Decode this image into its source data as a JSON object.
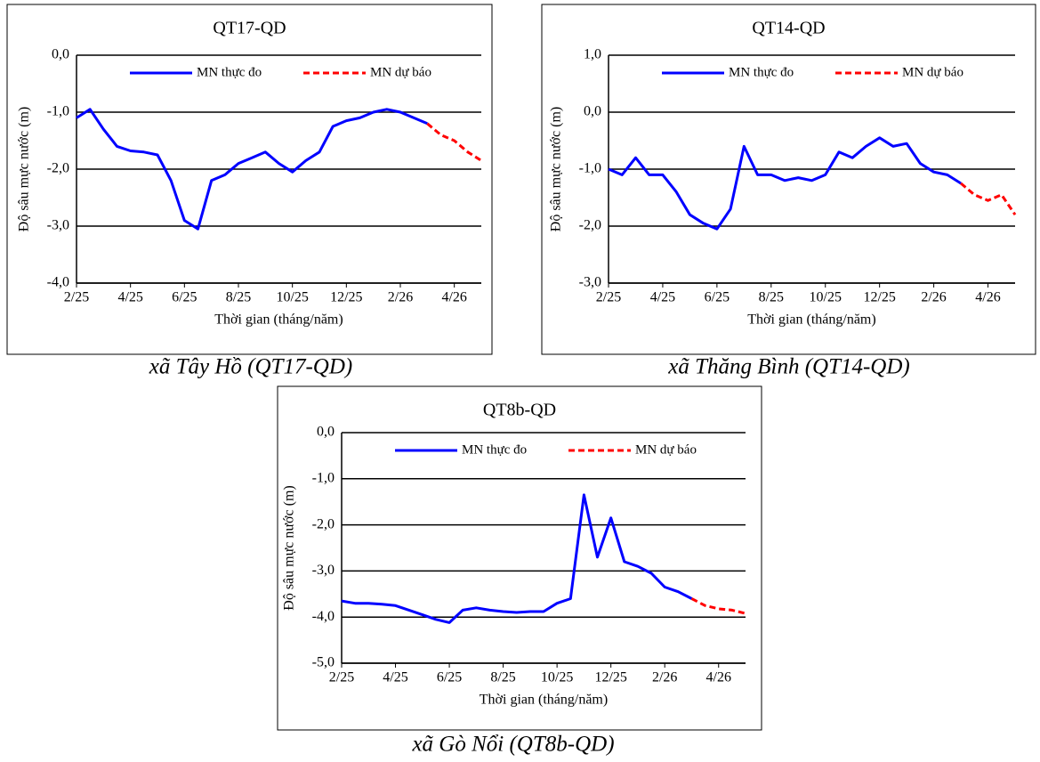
{
  "chart_data": [
    {
      "type": "line",
      "title": "QT17-QD",
      "caption": "xã Tây Hồ (QT17-QD)",
      "y_label": "Độ sâu mực nước (m)",
      "x_label": "Thời gian (tháng/năm)",
      "categories": [
        "2/25",
        null,
        null,
        null,
        "4/25",
        null,
        null,
        null,
        "6/25",
        null,
        null,
        null,
        "8/25",
        null,
        null,
        null,
        "10/25",
        null,
        null,
        null,
        "12/25",
        null,
        null,
        null,
        "2/26",
        null,
        null,
        null,
        "4/26",
        null,
        null
      ],
      "series": [
        {
          "name": "MN thực đo",
          "color": "#0000ff",
          "dash": false,
          "values": [
            -1.1,
            -0.95,
            -1.3,
            -1.6,
            -1.68,
            -1.7,
            -1.75,
            -2.2,
            -2.9,
            -3.05,
            -2.2,
            -2.1,
            -1.9,
            -1.8,
            -1.7,
            -1.9,
            -2.05,
            -1.85,
            -1.7,
            -1.25,
            -1.15,
            -1.1,
            -1.0,
            -0.95,
            -1.0,
            -1.1,
            -1.2,
            null,
            null,
            null,
            null
          ]
        },
        {
          "name": "MN dự báo",
          "color": "#ff0000",
          "dash": true,
          "values": [
            null,
            null,
            null,
            null,
            null,
            null,
            null,
            null,
            null,
            null,
            null,
            null,
            null,
            null,
            null,
            null,
            null,
            null,
            null,
            null,
            null,
            null,
            null,
            null,
            null,
            null,
            -1.2,
            -1.4,
            -1.5,
            -1.7,
            -1.85
          ]
        }
      ],
      "ylim": [
        -4,
        0
      ],
      "yticks": [
        {
          "value": -4,
          "label": "-4,0"
        },
        {
          "value": -3,
          "label": "-3,0"
        },
        {
          "value": -2,
          "label": "-2,0"
        },
        {
          "value": -1,
          "label": "-1,0"
        },
        {
          "value": 0,
          "label": "0,0"
        }
      ],
      "grid": true
    },
    {
      "type": "line",
      "title": "QT14-QD",
      "caption": "xã Thăng Bình (QT14-QD)",
      "y_label": "Độ sâu mực nước (m)",
      "x_label": "Thời gian (tháng/năm)",
      "categories": [
        "2/25",
        null,
        null,
        null,
        "4/25",
        null,
        null,
        null,
        "6/25",
        null,
        null,
        null,
        "8/25",
        null,
        null,
        null,
        "10/25",
        null,
        null,
        null,
        "12/25",
        null,
        null,
        null,
        "2/26",
        null,
        null,
        null,
        "4/26",
        null,
        null
      ],
      "series": [
        {
          "name": "MN thực đo",
          "color": "#0000ff",
          "dash": false,
          "values": [
            -1.0,
            -1.1,
            -0.8,
            -1.1,
            -1.1,
            -1.4,
            -1.8,
            -1.95,
            -2.05,
            -1.7,
            -0.6,
            -1.1,
            -1.1,
            -1.2,
            -1.15,
            -1.2,
            -1.1,
            -0.7,
            -0.8,
            -0.6,
            -0.45,
            -0.6,
            -0.55,
            -0.9,
            -1.05,
            -1.1,
            -1.25,
            null,
            null,
            null,
            null
          ]
        },
        {
          "name": "MN dự báo",
          "color": "#ff0000",
          "dash": true,
          "values": [
            null,
            null,
            null,
            null,
            null,
            null,
            null,
            null,
            null,
            null,
            null,
            null,
            null,
            null,
            null,
            null,
            null,
            null,
            null,
            null,
            null,
            null,
            null,
            null,
            null,
            null,
            -1.25,
            -1.45,
            -1.55,
            -1.45,
            -1.8
          ]
        }
      ],
      "ylim": [
        -3,
        1
      ],
      "yticks": [
        {
          "value": -3,
          "label": "-3,0"
        },
        {
          "value": -2,
          "label": "-2,0"
        },
        {
          "value": -1,
          "label": "-1,0"
        },
        {
          "value": 0,
          "label": "0,0"
        },
        {
          "value": 1,
          "label": "1,0"
        }
      ],
      "grid": true
    },
    {
      "type": "line",
      "title": "QT8b-QD",
      "caption": "xã Gò Nổi (QT8b-QD)",
      "y_label": "Độ sâu mực nước (m)",
      "x_label": "Thời gian (tháng/năm)",
      "categories": [
        "2/25",
        null,
        null,
        null,
        "4/25",
        null,
        null,
        null,
        "6/25",
        null,
        null,
        null,
        "8/25",
        null,
        null,
        null,
        "10/25",
        null,
        null,
        null,
        "12/25",
        null,
        null,
        null,
        "2/26",
        null,
        null,
        null,
        "4/26",
        null,
        null
      ],
      "series": [
        {
          "name": "MN thực đo",
          "color": "#0000ff",
          "dash": false,
          "values": [
            -3.65,
            -3.7,
            -3.7,
            -3.72,
            -3.75,
            -3.85,
            -3.95,
            -4.05,
            -4.12,
            -3.85,
            -3.8,
            -3.85,
            -3.88,
            -3.9,
            -3.88,
            -3.88,
            -3.7,
            -3.6,
            -1.35,
            -2.7,
            -1.85,
            -2.8,
            -2.9,
            -3.05,
            -3.35,
            -3.45,
            -3.6,
            null,
            null,
            null,
            null
          ]
        },
        {
          "name": "MN dự báo",
          "color": "#ff0000",
          "dash": true,
          "values": [
            null,
            null,
            null,
            null,
            null,
            null,
            null,
            null,
            null,
            null,
            null,
            null,
            null,
            null,
            null,
            null,
            null,
            null,
            null,
            null,
            null,
            null,
            null,
            null,
            null,
            null,
            -3.6,
            -3.75,
            -3.82,
            -3.85,
            -3.92
          ]
        }
      ],
      "ylim": [
        -5,
        0
      ],
      "yticks": [
        {
          "value": -5,
          "label": "-5,0"
        },
        {
          "value": -4,
          "label": "-4,0"
        },
        {
          "value": -3,
          "label": "-3,0"
        },
        {
          "value": -2,
          "label": "-2,0"
        },
        {
          "value": -1,
          "label": "-1,0"
        },
        {
          "value": 0,
          "label": "0,0"
        }
      ],
      "grid": true
    }
  ]
}
